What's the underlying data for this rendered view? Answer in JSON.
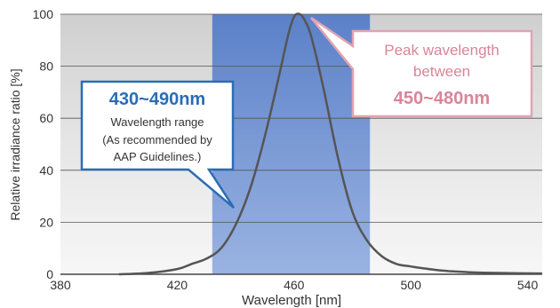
{
  "chart_data": {
    "type": "line",
    "xlabel": "Wavelength [nm]",
    "ylabel": "Relative irradiance ratio [%]",
    "xlim": [
      380,
      545
    ],
    "ylim": [
      0,
      100
    ],
    "x_ticks": [
      380,
      420,
      460,
      500,
      540
    ],
    "y_ticks": [
      0,
      20,
      40,
      60,
      80,
      100
    ],
    "grid": "horizontal",
    "highlight_range": [
      432,
      486
    ],
    "series": [
      {
        "x": [
          400,
          410,
          420,
          425,
          430,
          435,
          440,
          445,
          450,
          455,
          458,
          460,
          462,
          464,
          466,
          470,
          475,
          480,
          485,
          490,
          495,
          500,
          510,
          520,
          530,
          545
        ],
        "y": [
          0,
          0.5,
          2,
          4,
          6,
          10,
          19,
          33,
          53,
          77,
          92,
          99,
          100,
          97,
          91,
          72,
          45,
          24,
          13,
          7,
          4,
          3,
          1.5,
          0.8,
          0.5,
          0.3
        ]
      }
    ],
    "annotations": {
      "range_callout": {
        "title": "430~490nm",
        "lines": [
          "Wavelength range",
          "(As recommended by",
          "AAP Guidelines.)"
        ]
      },
      "peak_callout": {
        "line1": "Peak wavelength",
        "line2": "between",
        "line3": "450~480nm"
      }
    },
    "colors": {
      "curve": "#555555",
      "highlight": "#5b83cc",
      "blue_callout": "#2a6db5",
      "pink_callout": "#d98599"
    }
  }
}
